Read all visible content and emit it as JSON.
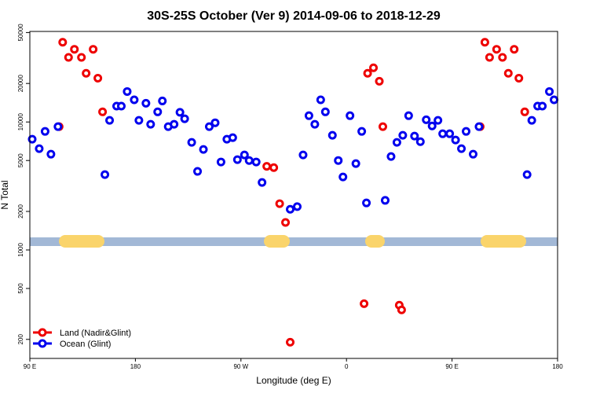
{
  "chart_data": {
    "type": "scatter",
    "title": "30S-25S October (Ver 9)   2014-09-06 to 2018-12-29",
    "x_label": "Longitude (deg E)",
    "y_label": "N Total",
    "log_y": true,
    "legend": "bottom-left",
    "xlim": [
      90,
      540
    ],
    "xticks": [
      {
        "value": 90,
        "label": "90 E"
      },
      {
        "value": 180,
        "label": "180"
      },
      {
        "value": 270,
        "label": "90 W"
      },
      {
        "value": 360,
        "label": "0"
      },
      {
        "value": 450,
        "label": "90 E"
      },
      {
        "value": 540,
        "label": "180"
      }
    ],
    "ylim": [
      142,
      51000
    ],
    "yticks": [
      200,
      500,
      1000,
      2000,
      5000,
      10000,
      20000,
      50000
    ],
    "series": [
      {
        "name": "Land (Nadir&Glint)",
        "color": "#ee0000",
        "x": [
          115,
          118,
          123,
          128,
          134,
          138,
          144,
          148,
          152,
          292,
          298,
          303,
          308,
          312,
          375,
          378,
          383,
          388,
          391,
          405,
          407,
          474,
          478,
          482,
          488,
          493,
          498,
          503,
          507,
          512
        ],
        "values": [
          9200,
          42000,
          32000,
          37000,
          32000,
          24000,
          37000,
          22000,
          12000,
          4500,
          4400,
          2300,
          1640,
          190,
          380,
          24000,
          26500,
          20800,
          9200,
          370,
          340,
          9200,
          42000,
          32000,
          37000,
          32000,
          24000,
          37000,
          22000,
          12000
        ]
      },
      {
        "name": "Ocean (Glint)",
        "color": "#0000ee",
        "x": [
          92,
          98,
          103,
          108,
          114,
          154,
          158,
          164,
          168,
          173,
          179,
          183,
          189,
          193,
          199,
          203,
          208,
          213,
          218,
          222,
          228,
          233,
          238,
          243,
          248,
          253,
          258,
          263,
          267,
          273,
          277,
          283,
          288,
          312,
          318,
          323,
          328,
          333,
          338,
          342,
          348,
          353,
          357,
          363,
          368,
          373,
          377,
          393,
          398,
          403,
          408,
          413,
          418,
          423,
          428,
          433,
          438,
          442,
          448,
          453,
          458,
          462,
          468,
          473,
          514,
          518,
          523,
          527,
          533,
          537
        ],
        "values": [
          7330,
          6190,
          8440,
          5600,
          9200,
          3880,
          10300,
          13300,
          13300,
          17300,
          14900,
          10300,
          14000,
          9590,
          12000,
          14600,
          9200,
          9590,
          11900,
          10600,
          6930,
          4110,
          6100,
          9200,
          9860,
          4870,
          7330,
          7540,
          5080,
          5530,
          5000,
          4870,
          3370,
          2080,
          2180,
          5530,
          11200,
          9590,
          14900,
          12000,
          7870,
          5000,
          3720,
          11200,
          4730,
          8440,
          2330,
          2440,
          5370,
          6930,
          7870,
          11200,
          7760,
          7020,
          10400,
          9310,
          10300,
          8090,
          8090,
          7230,
          6190,
          8440,
          5600,
          9200,
          3880,
          10300,
          13300,
          13300,
          17300,
          14900
        ]
      }
    ]
  }
}
